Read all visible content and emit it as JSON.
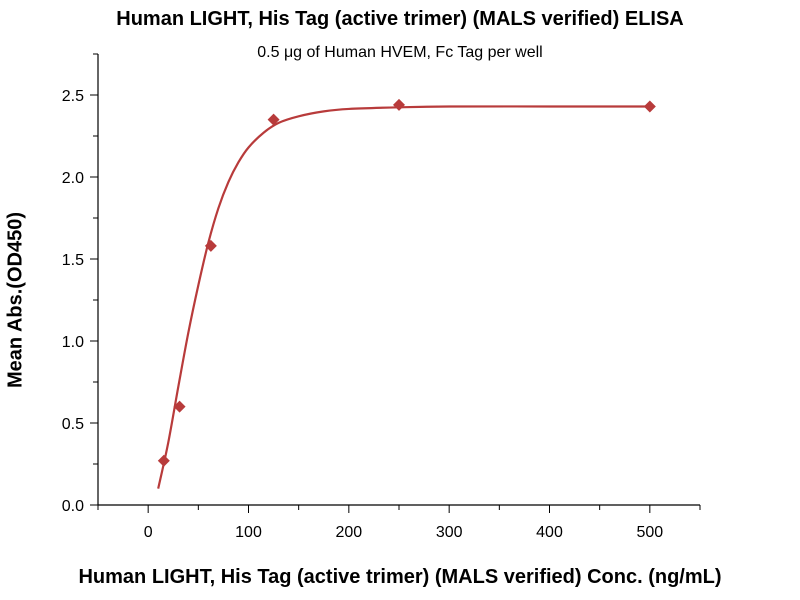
{
  "chart_data": {
    "type": "scatter",
    "title": "Human LIGHT, His Tag (active trimer) (MALS verified) ELISA",
    "subtitle": "0.5 μg of Human HVEM, Fc Tag per well",
    "xlabel": "Human LIGHT, His Tag (active trimer) (MALS verified) Conc. (ng/mL)",
    "ylabel": "Mean Abs.(OD450)",
    "xlim": [
      -50,
      550
    ],
    "ylim": [
      0,
      2.75
    ],
    "x_ticks": [
      "0",
      "100",
      "200",
      "300",
      "400",
      "500"
    ],
    "y_ticks": [
      "0.0",
      "0.5",
      "1.0",
      "1.5",
      "2.0",
      "2.5"
    ],
    "grid": false,
    "legend": "none",
    "color": "#b83b3b",
    "series": [
      {
        "x": [
          15.6,
          31.3,
          62.5,
          125,
          250,
          500
        ],
        "y": [
          0.27,
          0.6,
          1.58,
          2.35,
          2.44,
          2.43
        ]
      }
    ],
    "fit_curve": {
      "x": [
        10,
        20,
        30,
        40,
        50,
        60,
        70,
        80,
        90,
        100,
        115,
        130,
        150,
        175,
        200,
        250,
        300,
        400,
        500
      ],
      "y": [
        0.1,
        0.38,
        0.72,
        1.05,
        1.34,
        1.6,
        1.81,
        1.97,
        2.09,
        2.18,
        2.27,
        2.33,
        2.37,
        2.4,
        2.415,
        2.425,
        2.43,
        2.43,
        2.43
      ]
    }
  }
}
